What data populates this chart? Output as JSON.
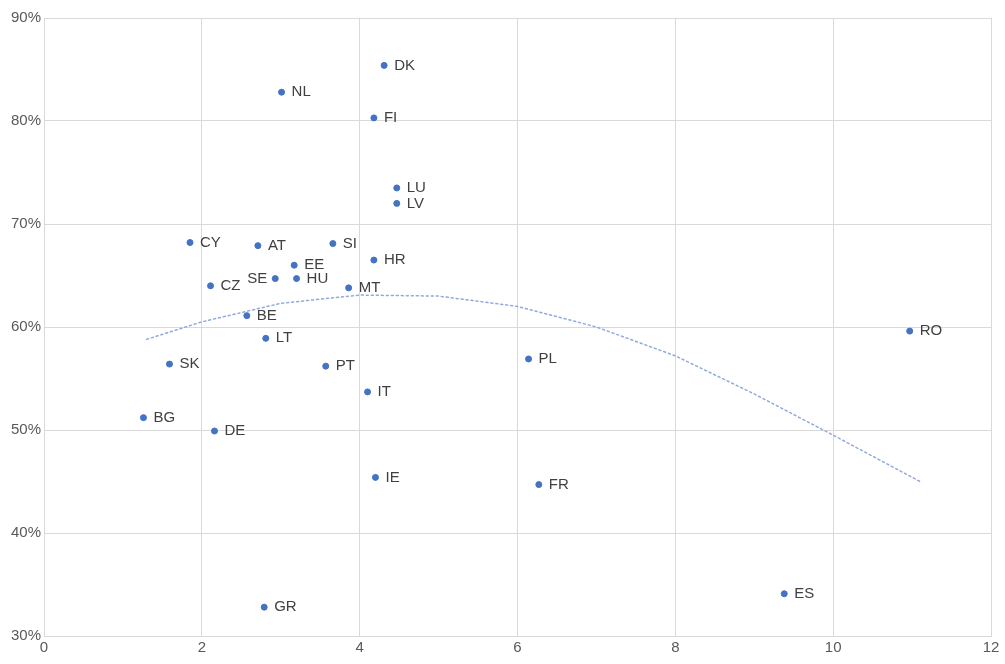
{
  "chart_data": {
    "type": "scatter",
    "xlim": [
      0,
      12
    ],
    "xticks": [
      0,
      2,
      4,
      6,
      8,
      10,
      12
    ],
    "ylim": [
      30,
      90
    ],
    "yticks": [
      {
        "value": 30,
        "label": "30%"
      },
      {
        "value": 40,
        "label": "40%"
      },
      {
        "value": 50,
        "label": "50%"
      },
      {
        "value": 60,
        "label": "60%"
      },
      {
        "value": 70,
        "label": "70%"
      },
      {
        "value": 80,
        "label": "80%"
      },
      {
        "value": 90,
        "label": "90%"
      }
    ],
    "grid": true,
    "legend": false,
    "marker": "circle",
    "series": [
      {
        "color": "#4472c4",
        "x": [
          4.31,
          3.01,
          4.18,
          4.47,
          4.47,
          1.85,
          2.71,
          3.66,
          4.18,
          3.17,
          2.93,
          3.2,
          2.11,
          3.86,
          2.57,
          2.81,
          1.59,
          3.57,
          6.14,
          10.97,
          4.1,
          1.26,
          2.16,
          4.2,
          6.27,
          9.38,
          2.79
        ],
        "values": [
          85.4,
          82.8,
          80.3,
          73.5,
          72.0,
          68.2,
          67.9,
          68.1,
          66.5,
          66.0,
          64.7,
          64.7,
          64.0,
          63.8,
          61.1,
          58.9,
          56.4,
          56.2,
          56.9,
          59.6,
          53.7,
          51.2,
          49.9,
          45.4,
          44.7,
          34.1,
          32.8
        ]
      },
      {
        "type": "line",
        "color": "#8faadc",
        "line_style": "dotted",
        "marker": "none",
        "x": [
          1.3,
          2,
          3,
          4,
          5,
          6,
          7,
          8,
          9,
          10,
          11.1
        ],
        "values": [
          58.8,
          60.5,
          62.3,
          63.1,
          63,
          62,
          60,
          57.2,
          53.5,
          49.5,
          45
        ]
      }
    ],
    "annotations": [
      {
        "text": "DK",
        "x": 4.31,
        "y": 85.4
      },
      {
        "text": "NL",
        "x": 3.01,
        "y": 82.8
      },
      {
        "text": "FI",
        "x": 4.18,
        "y": 80.3
      },
      {
        "text": "LU",
        "x": 4.47,
        "y": 73.5
      },
      {
        "text": "LV",
        "x": 4.47,
        "y": 72.0
      },
      {
        "text": "CY",
        "x": 1.85,
        "y": 68.2
      },
      {
        "text": "AT",
        "x": 2.71,
        "y": 67.9
      },
      {
        "text": "SI",
        "x": 3.66,
        "y": 68.1
      },
      {
        "text": "HR",
        "x": 4.18,
        "y": 66.5
      },
      {
        "text": "EE",
        "x": 3.17,
        "y": 66.0
      },
      {
        "text": "SE",
        "x": 2.93,
        "y": 64.7
      },
      {
        "text": "HU",
        "x": 3.2,
        "y": 64.7
      },
      {
        "text": "CZ",
        "x": 2.11,
        "y": 64.0
      },
      {
        "text": "MT",
        "x": 3.86,
        "y": 63.8
      },
      {
        "text": "BE",
        "x": 2.57,
        "y": 61.1
      },
      {
        "text": "LT",
        "x": 2.81,
        "y": 58.9
      },
      {
        "text": "SK",
        "x": 1.59,
        "y": 56.4
      },
      {
        "text": "PT",
        "x": 3.57,
        "y": 56.2
      },
      {
        "text": "PL",
        "x": 6.14,
        "y": 56.9
      },
      {
        "text": "RO",
        "x": 10.97,
        "y": 59.6
      },
      {
        "text": "IT",
        "x": 4.1,
        "y": 53.7
      },
      {
        "text": "BG",
        "x": 1.26,
        "y": 51.2
      },
      {
        "text": "DE",
        "x": 2.16,
        "y": 49.9
      },
      {
        "text": "IE",
        "x": 4.2,
        "y": 45.4
      },
      {
        "text": "FR",
        "x": 6.27,
        "y": 44.7
      },
      {
        "text": "ES",
        "x": 9.38,
        "y": 34.1
      },
      {
        "text": "GR",
        "x": 2.79,
        "y": 32.8
      }
    ]
  }
}
